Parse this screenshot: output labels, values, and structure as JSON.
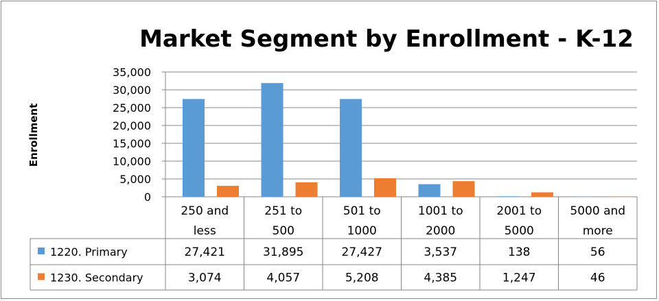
{
  "chart_data": {
    "type": "bar",
    "title": "Market Segment by Enrollment - K-12",
    "ylabel": "Enrollment",
    "xlabel": "",
    "ylim": [
      0,
      35000
    ],
    "yticks": [
      0,
      5000,
      10000,
      15000,
      20000,
      25000,
      30000,
      35000
    ],
    "ytick_labels": [
      "0",
      "5,000",
      "10,000",
      "15,000",
      "20,000",
      "25,000",
      "30,000",
      "35,000"
    ],
    "grid": true,
    "categories": [
      [
        "250 and",
        "less"
      ],
      [
        "251 to",
        "500"
      ],
      [
        "501 to",
        "1000"
      ],
      [
        "1001 to",
        "2000"
      ],
      [
        "2001 to",
        "5000"
      ],
      [
        "5000 and",
        "more"
      ]
    ],
    "series": [
      {
        "name": "1220. Primary",
        "color": "#5b9bd5",
        "values": [
          27421,
          31895,
          27427,
          3537,
          138,
          56
        ],
        "labels": [
          "27,421",
          "31,895",
          "27,427",
          "3,537",
          "138",
          "56"
        ]
      },
      {
        "name": "1230. Secondary",
        "color": "#ed7d31",
        "values": [
          3074,
          4057,
          5208,
          4385,
          1247,
          46
        ],
        "labels": [
          "3,074",
          "4,057",
          "5,208",
          "4,385",
          "1,247",
          "46"
        ]
      }
    ],
    "legend_placement": "data-table"
  }
}
